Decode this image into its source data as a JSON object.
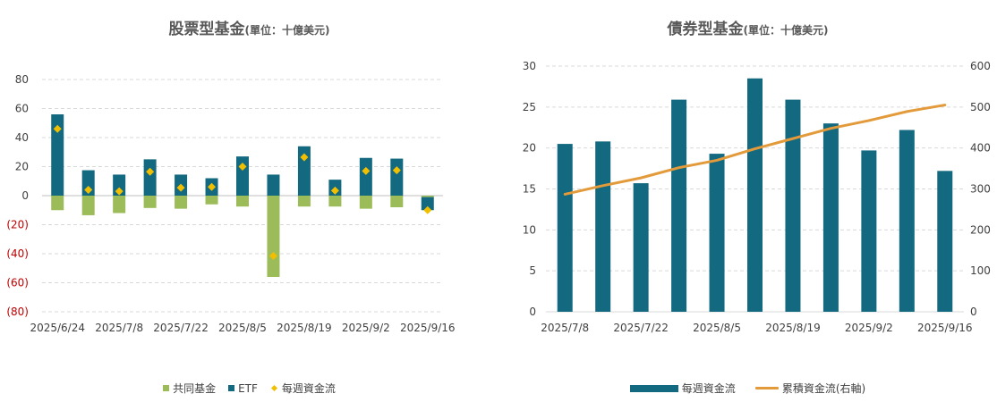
{
  "charts": [
    {
      "title_main": "股票型基金",
      "title_unit": "(單位：十億美元)",
      "legend": {
        "mutual": "共同基金",
        "etf": "ETF",
        "weekly": "每週資金流"
      }
    },
    {
      "title_main": "債券型基金",
      "title_unit": "(單位：十億美元)",
      "legend": {
        "weekly": "每週資金流",
        "cumulative": "累積資金流(右軸)"
      }
    }
  ],
  "colors": {
    "teal": "#13697F",
    "green": "#9CBB59",
    "diamond": "#F2BF00",
    "orange": "#E39A3A",
    "negative_tick": "#C00000",
    "axis_text": "#404040",
    "grid": "#D9D9D9"
  },
  "chart_data": [
    {
      "type": "bar",
      "stacked": true,
      "title": "股票型基金(單位：十億美元)",
      "x": [
        "2025/6/24",
        "2025/7/1",
        "2025/7/8",
        "2025/7/15",
        "2025/7/22",
        "2025/7/29",
        "2025/8/5",
        "2025/8/12",
        "2025/8/19",
        "2025/8/26",
        "2025/9/2",
        "2025/9/9",
        "2025/9/16"
      ],
      "x_tick_labels": [
        "2025/6/24",
        "2025/7/8",
        "2025/7/22",
        "2025/8/5",
        "2025/8/19",
        "2025/9/2",
        "2025/9/16"
      ],
      "y_tick_labels": [
        "80",
        "60",
        "40",
        "20",
        "0",
        "(20)",
        "(40)",
        "(60)",
        "(80)"
      ],
      "ylim": [
        -80,
        80
      ],
      "grid": true,
      "legend_position": "bottom",
      "series": [
        {
          "name": "共同基金",
          "type": "bar",
          "values": [
            -10,
            -13.5,
            -12,
            -8.5,
            -9,
            -6,
            -7.5,
            -56,
            -7.5,
            -7.5,
            -9,
            -8,
            -1
          ]
        },
        {
          "name": "ETF",
          "type": "bar",
          "values": [
            56,
            17.5,
            14.5,
            25,
            14.5,
            12,
            27,
            14.5,
            34,
            11,
            26,
            25.5,
            -9
          ]
        },
        {
          "name": "每週資金流",
          "type": "scatter",
          "marker": "diamond",
          "values": [
            46,
            4,
            3,
            16.5,
            5.5,
            6,
            20,
            -41.5,
            26.5,
            3.5,
            17,
            17.5,
            -10
          ]
        }
      ]
    },
    {
      "type": "bar",
      "title": "債券型基金(單位：十億美元)",
      "x": [
        "2025/7/8",
        "2025/7/15",
        "2025/7/22",
        "2025/7/29",
        "2025/8/5",
        "2025/8/12",
        "2025/8/19",
        "2025/8/26",
        "2025/9/2",
        "2025/9/9",
        "2025/9/16"
      ],
      "x_tick_labels": [
        "2025/7/8",
        "2025/7/22",
        "2025/8/5",
        "2025/8/19",
        "2025/9/2",
        "2025/9/16"
      ],
      "y_tick_labels": [
        "0",
        "5",
        "10",
        "15",
        "20",
        "25",
        "30"
      ],
      "y2_tick_labels": [
        "0",
        "100",
        "200",
        "300",
        "400",
        "500",
        "600"
      ],
      "ylim": [
        0,
        30
      ],
      "y2lim": [
        0,
        600
      ],
      "grid": true,
      "legend_position": "bottom",
      "series": [
        {
          "name": "每週資金流",
          "type": "bar",
          "axis": "left",
          "values": [
            20.5,
            20.8,
            15.7,
            25.9,
            19.3,
            28.5,
            25.9,
            23,
            19.7,
            22.2,
            17.2
          ]
        },
        {
          "name": "累積資金流(右軸)",
          "type": "line",
          "axis": "right",
          "values": [
            287,
            308,
            327,
            352,
            370,
            398,
            423,
            448,
            467,
            489,
            505
          ]
        }
      ]
    }
  ]
}
